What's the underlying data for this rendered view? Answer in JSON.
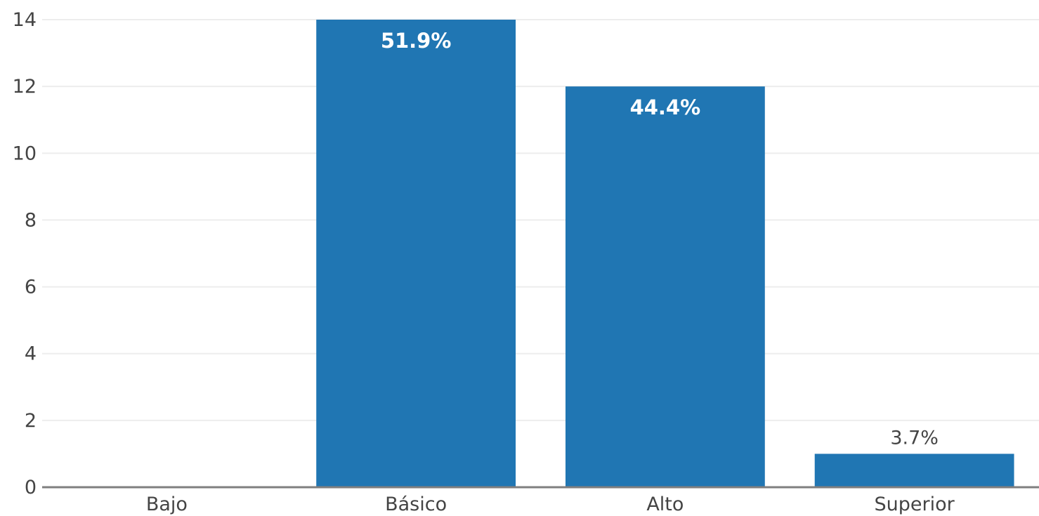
{
  "chart_data": {
    "type": "bar",
    "categories": [
      "Bajo",
      "Básico",
      "Alto",
      "Superior"
    ],
    "values": [
      0,
      14,
      12,
      1
    ],
    "data_labels": [
      "",
      "51.9%",
      "44.4%",
      "3.7%"
    ],
    "ylim": [
      0,
      14
    ],
    "yticks": [
      0,
      2,
      4,
      6,
      8,
      10,
      12,
      14
    ],
    "ytick_labels": [
      "0",
      "2",
      "4",
      "6",
      "8",
      "10",
      "12",
      "14"
    ],
    "grid": true,
    "colors": {
      "bar": "#2076b3",
      "grid": "#ededed",
      "axis": "#7f7f7f",
      "text": "#444444"
    }
  }
}
